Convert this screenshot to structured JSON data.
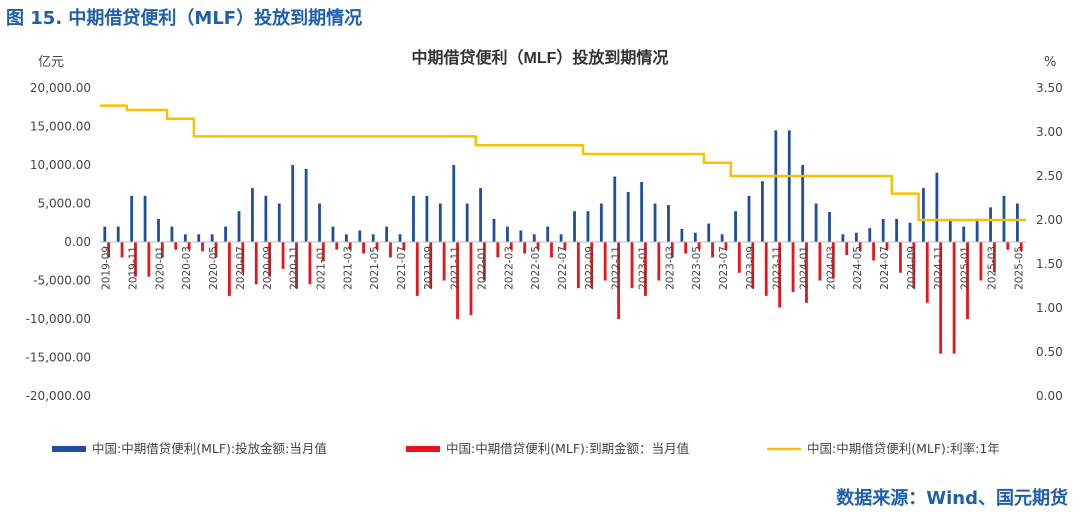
{
  "figure_title": "图 15. 中期借贷便利（MLF）投放到期情况",
  "source_note": "数据来源：Wind、国元期货",
  "colors": {
    "supply": "#1f4e9e",
    "due": "#e8141b",
    "rate": "#f5c200",
    "title_blue": "#1f5fa8"
  },
  "chart_data": {
    "type": "bar",
    "title": "中期借贷便利（MLF）投放到期情况",
    "ylabel_left": "亿元",
    "ylabel_right": "%",
    "ylim_left": [
      -20000,
      20000
    ],
    "ylim_right": [
      0,
      3.5
    ],
    "yticks_left": [
      "20,000.00",
      "15,000.00",
      "10,000.00",
      "5,000.00",
      "0.00",
      "-5,000.00",
      "-10,000.00",
      "-15,000.00",
      "-20,000.00"
    ],
    "yticks_right": [
      "3.50",
      "3.00",
      "2.50",
      "2.00",
      "1.50",
      "1.00",
      "0.50",
      "0.00"
    ],
    "categories": [
      "2019-09",
      "2019-10",
      "2019-11",
      "2019-12",
      "2020-01",
      "2020-02",
      "2020-03",
      "2020-04",
      "2020-05",
      "2020-06",
      "2020-07",
      "2020-08",
      "2020-09",
      "2020-10",
      "2020-11",
      "2020-12",
      "2021-01",
      "2021-02",
      "2021-03",
      "2021-04",
      "2021-05",
      "2021-06",
      "2021-07",
      "2021-08",
      "2021-09",
      "2021-10",
      "2021-11",
      "2021-12",
      "2022-01",
      "2022-02",
      "2022-03",
      "2022-04",
      "2022-05",
      "2022-06",
      "2022-07",
      "2022-08",
      "2022-09",
      "2022-10",
      "2022-11",
      "2022-12",
      "2023-01",
      "2023-02",
      "2023-03",
      "2023-04",
      "2023-05",
      "2023-06",
      "2023-07",
      "2023-08",
      "2023-09",
      "2023-10",
      "2023-11",
      "2023-12",
      "2024-01",
      "2024-02",
      "2024-03",
      "2024-04",
      "2024-05",
      "2024-06",
      "2024-07",
      "2024-08",
      "2024-09",
      "2024-10",
      "2024-11",
      "2024-12",
      "2025-01",
      "2025-02",
      "2025-03",
      "2025-04",
      "2025-05"
    ],
    "x_tick_labels": [
      "2019-09",
      "2019-11",
      "2020-01",
      "2020-03",
      "2020-05",
      "2020-07",
      "2020-09",
      "2020-11",
      "2021-01",
      "2021-03",
      "2021-05",
      "2021-07",
      "2021-09",
      "2021-11",
      "2022-01",
      "2022-03",
      "2022-05",
      "2022-07",
      "2022-09",
      "2022-11",
      "2023-01",
      "2023-03",
      "2023-05",
      "2023-07",
      "2023-09",
      "2023-11",
      "2024-01",
      "2024-03",
      "2024-05",
      "2024-07",
      "2024-09",
      "2024-11",
      "2025-01",
      "2025-03",
      "2025-05"
    ],
    "series": [
      {
        "name": "中国:中期借贷便利(MLF):投放金额:当月值",
        "type": "bar",
        "values": [
          2000,
          2000,
          6000,
          6000,
          3000,
          2000,
          1000,
          1000,
          1000,
          2000,
          4000,
          7000,
          6000,
          5000,
          10000,
          9500,
          5000,
          2000,
          1000,
          1500,
          1000,
          2000,
          1000,
          6000,
          6000,
          5000,
          10000,
          5000,
          7000,
          3000,
          2000,
          1500,
          1000,
          2000,
          1000,
          4000,
          4000,
          5000,
          8500,
          6500,
          7800,
          5000,
          4800,
          1700,
          1200,
          2400,
          1000,
          4000,
          6000,
          7900,
          14500,
          14500,
          10000,
          5000,
          3900,
          1000,
          1200,
          1800,
          3000,
          3000,
          2500,
          7000,
          9000,
          3000,
          2000,
          3000,
          4500,
          6000,
          5000
        ]
      },
      {
        "name": "中国:中期借贷便利(MLF):到期金额：当月值",
        "type": "bar",
        "values": [
          -2000,
          -2000,
          -4500,
          -4500,
          -2000,
          -1000,
          -1000,
          -1200,
          -2000,
          -7000,
          -4000,
          -5500,
          -4500,
          -3500,
          -6000,
          -5500,
          -2500,
          -1000,
          -1000,
          -1500,
          -1000,
          -2000,
          -1000,
          -7000,
          -6000,
          -5000,
          -10000,
          -9500,
          -5000,
          -2000,
          -1000,
          -1500,
          -1000,
          -2000,
          -1000,
          -6000,
          -6000,
          -5000,
          -10000,
          -6000,
          -7000,
          -5000,
          -2000,
          -1500,
          -1000,
          -2000,
          -1000,
          -4000,
          -6000,
          -7000,
          -8500,
          -6500,
          -7900,
          -5000,
          -4700,
          -1700,
          -1200,
          -2400,
          -1000,
          -4000,
          -6000,
          -7900,
          -14500,
          -14500,
          -10000,
          -5000,
          -3900,
          -1000,
          -1200
        ]
      },
      {
        "name": "中国:中期借贷便利(MLF):利率:1年",
        "type": "line",
        "axis": "right",
        "values": [
          3.3,
          3.3,
          3.25,
          3.25,
          3.25,
          3.15,
          3.15,
          2.95,
          2.95,
          2.95,
          2.95,
          2.95,
          2.95,
          2.95,
          2.95,
          2.95,
          2.95,
          2.95,
          2.95,
          2.95,
          2.95,
          2.95,
          2.95,
          2.95,
          2.95,
          2.95,
          2.95,
          2.95,
          2.85,
          2.85,
          2.85,
          2.85,
          2.85,
          2.85,
          2.85,
          2.85,
          2.75,
          2.75,
          2.75,
          2.75,
          2.75,
          2.75,
          2.75,
          2.75,
          2.75,
          2.65,
          2.65,
          2.5,
          2.5,
          2.5,
          2.5,
          2.5,
          2.5,
          2.5,
          2.5,
          2.5,
          2.5,
          2.5,
          2.5,
          2.3,
          2.3,
          2.0,
          2.0,
          2.0,
          2.0,
          2.0,
          2.0,
          2.0,
          2.0
        ]
      }
    ],
    "legend_position": "bottom",
    "grid": false
  }
}
